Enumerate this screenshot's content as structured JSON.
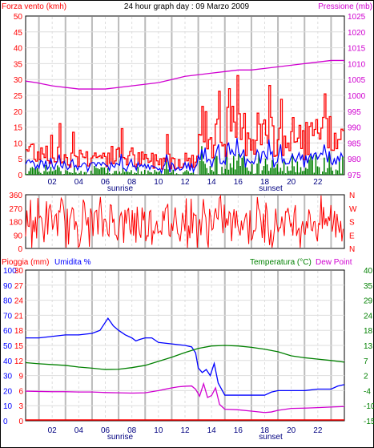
{
  "colors": {
    "wind": "#ff0000",
    "gust": "#ff0000",
    "avg_wind": "#0000ff",
    "green_wind": "#008000",
    "pressure": "#d000d0",
    "humidity": "#0000ff",
    "temperature": "#008000",
    "dewpoint": "#d000d0",
    "rain": "#ff0000",
    "direction": "#ff0000"
  },
  "chart_data": [
    {
      "type": "line",
      "id": "wind-pressure",
      "title": "24 hour graph day : 09 Marzo 2009",
      "left_axis_label": "Forza vento (kmh)",
      "right_axis_label": "Pressione (mb)",
      "ylim": [
        0,
        50
      ],
      "y2lim": [
        975,
        1025
      ],
      "left_ticks": [
        "0",
        "5",
        "10",
        "15",
        "20",
        "25",
        "30",
        "35",
        "40",
        "45",
        "50"
      ],
      "right_ticks": [
        "975",
        "980",
        "985",
        "990",
        "995",
        "1000",
        "1005",
        "1010",
        "1015",
        "1020",
        "1025"
      ],
      "x_ticks": [
        "02",
        "04",
        "06",
        "08",
        "10",
        "12",
        "14",
        "16",
        "18",
        "20",
        "22"
      ],
      "sunrise_label": "sunrise",
      "sunrise_hour": 6.6,
      "sunset_label": "sunset",
      "sunset_hour": 18.2,
      "pressure_hours": [
        0,
        0.8,
        2.0,
        4.0,
        6.0,
        7.0,
        8.0,
        9.0,
        10.0,
        11.0,
        12.0,
        13.0,
        14.0,
        15.0,
        16.0,
        17.0,
        18.0,
        19.0,
        20.0,
        21.0,
        22.0,
        23.0,
        24.0
      ],
      "pressure": [
        1004.5,
        1004,
        1003,
        1002,
        1002,
        1002.5,
        1003,
        1003.5,
        1004,
        1005,
        1006,
        1006.5,
        1007,
        1007.5,
        1008,
        1008,
        1008.5,
        1009,
        1009.5,
        1010,
        1010.5,
        1011,
        1011
      ]
    },
    {
      "type": "scatter",
      "id": "wind-direction",
      "ylim": [
        0,
        360
      ],
      "left_ticks": [
        "0",
        "90",
        "180",
        "270",
        "360"
      ],
      "right_labels": [
        "N",
        "W",
        "S",
        "E",
        "N"
      ]
    },
    {
      "type": "line",
      "id": "humidity-temp",
      "left_axis_label": "Pioggia (mm)",
      "humidity_label": "Umidita %",
      "right_axis_label": "Temperatura (°C)",
      "dewpoint_label": "Dew Point",
      "rain_ticks": [
        "0",
        "3",
        "6",
        "9",
        "12",
        "15",
        "18",
        "21",
        "24",
        "27",
        "30"
      ],
      "humidity_ticks": [
        "0",
        "10",
        "20",
        "30",
        "40",
        "50",
        "60",
        "70",
        "80",
        "90",
        "100"
      ],
      "temp_ticks": [
        "-15",
        "-10",
        "-4",
        "2",
        "7",
        "13",
        "18",
        "24",
        "29",
        "35",
        "40"
      ],
      "x_ticks": [
        "02",
        "04",
        "06",
        "08",
        "10",
        "12",
        "14",
        "16",
        "18",
        "20",
        "22"
      ],
      "sunrise_label": "sunrise",
      "sunset_label": "sunset",
      "humidity_hours": [
        0,
        1,
        2,
        3,
        4,
        5,
        5.6,
        5.9,
        6.2,
        6.6,
        7,
        7.5,
        8,
        8.3,
        8.6,
        9,
        9.5,
        10,
        11,
        12,
        12.5,
        12.8,
        13.0,
        13.3,
        13.6,
        13.9,
        14.2,
        14.5,
        15,
        16,
        17,
        18,
        18.5,
        19,
        20,
        21,
        22,
        23,
        23.5,
        24
      ],
      "humidity": [
        55,
        55,
        56,
        57,
        57,
        58,
        60,
        64,
        68,
        63,
        60,
        57,
        55,
        53,
        54,
        55,
        55,
        52,
        51,
        50,
        49,
        45,
        35,
        32,
        34,
        30,
        38,
        25,
        17,
        17,
        17,
        17,
        19,
        20,
        20,
        20,
        21,
        21,
        23,
        24
      ],
      "temperature_hours": [
        0,
        1,
        2,
        3,
        4,
        5,
        6,
        7,
        8,
        9,
        10,
        11,
        12,
        13,
        14,
        15,
        16,
        17,
        18,
        19,
        20,
        21,
        22,
        23,
        24
      ],
      "temperature": [
        6.2,
        5.8,
        5.5,
        5.2,
        4.6,
        4.2,
        3.7,
        3.8,
        4.4,
        5.2,
        6.7,
        8.2,
        9.9,
        11.4,
        12.3,
        12.5,
        12.3,
        11.8,
        11.1,
        10.2,
        8.7,
        8.0,
        7.5,
        7.0,
        6.4
      ],
      "dewpoint_hours": [
        0,
        1,
        2,
        3,
        4,
        5,
        6,
        7,
        8,
        9,
        10,
        10.5,
        11,
        11.5,
        12,
        12.5,
        12.8,
        13.1,
        13.4,
        13.7,
        14.0,
        14.3,
        14.6,
        15,
        16,
        17,
        18,
        18.5,
        19,
        20,
        21,
        22,
        23,
        24
      ],
      "dewpoint": [
        -4.2,
        -4.3,
        -4.4,
        -4.4,
        -4.5,
        -4.5,
        -4.7,
        -4.8,
        -4.9,
        -4.8,
        -4.0,
        -3.5,
        -3.0,
        -2.6,
        -2.4,
        -2.3,
        -3.5,
        -6.0,
        -1.5,
        -6.5,
        -5.8,
        -3.0,
        -9.0,
        -10.8,
        -11.0,
        -11.5,
        -12.0,
        -11.8,
        -11.2,
        -10.5,
        -10.4,
        -10.2,
        -10.0,
        -9.8
      ],
      "rain": [
        0,
        0
      ]
    }
  ]
}
